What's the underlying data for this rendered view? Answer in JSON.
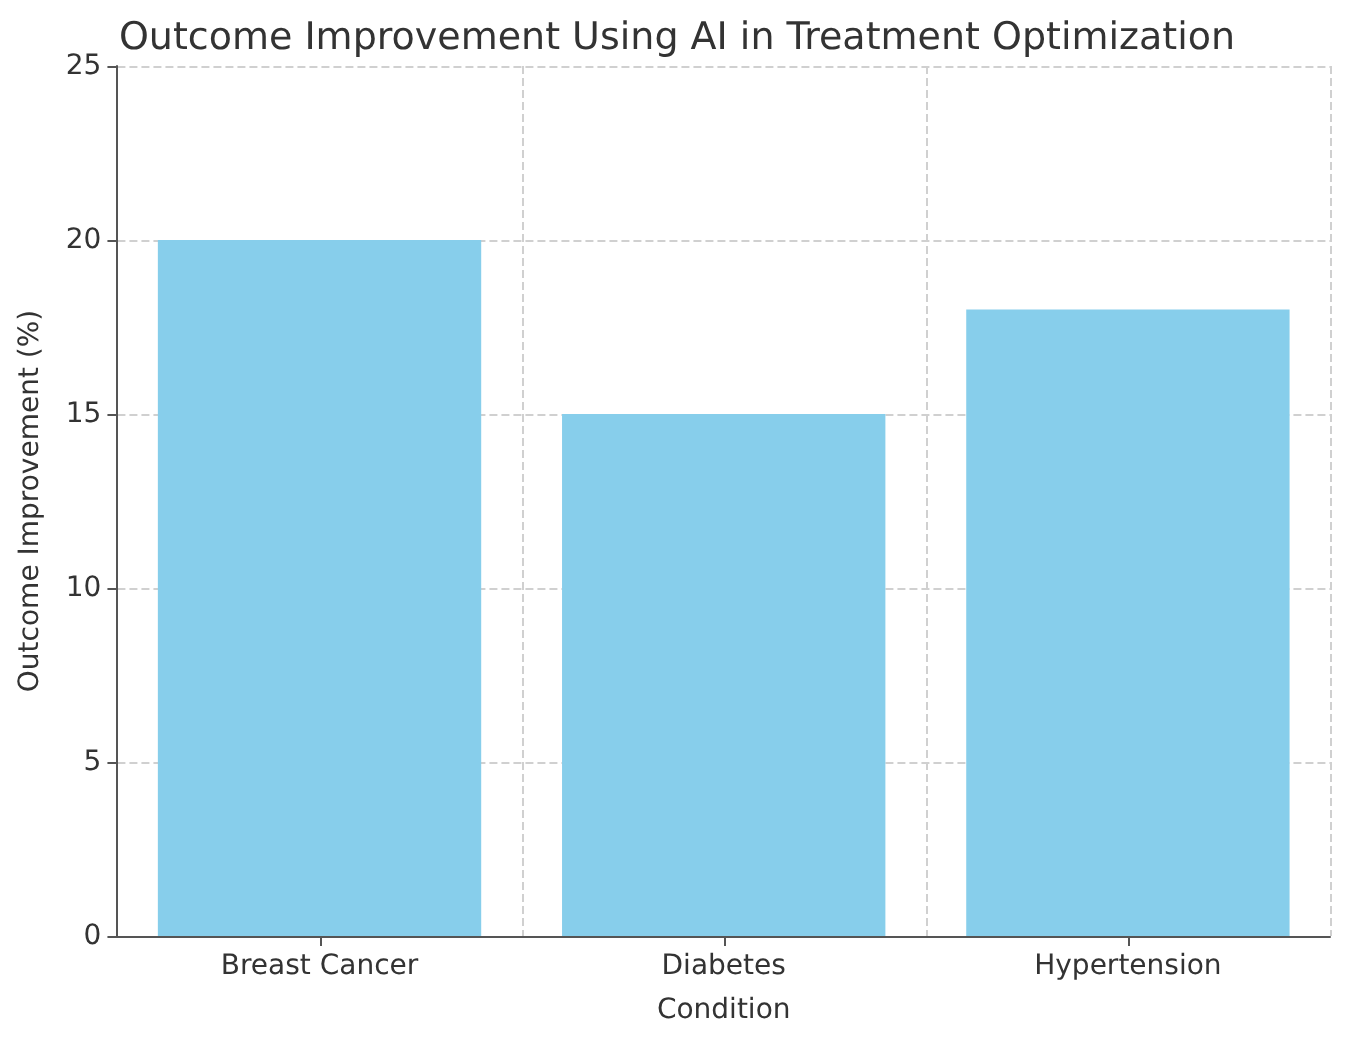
{
  "chart_data": {
    "type": "bar",
    "title": "Outcome Improvement Using AI in Treatment Optimization",
    "xlabel": "Condition",
    "ylabel": "Outcome Improvement (%)",
    "categories": [
      "Breast Cancer",
      "Diabetes",
      "Hypertension"
    ],
    "values": [
      20,
      15,
      18
    ],
    "color": "#87ceeb",
    "ylim": [
      0,
      25
    ],
    "yticks": [
      0,
      5,
      10,
      15,
      20,
      25
    ],
    "grid": true
  }
}
